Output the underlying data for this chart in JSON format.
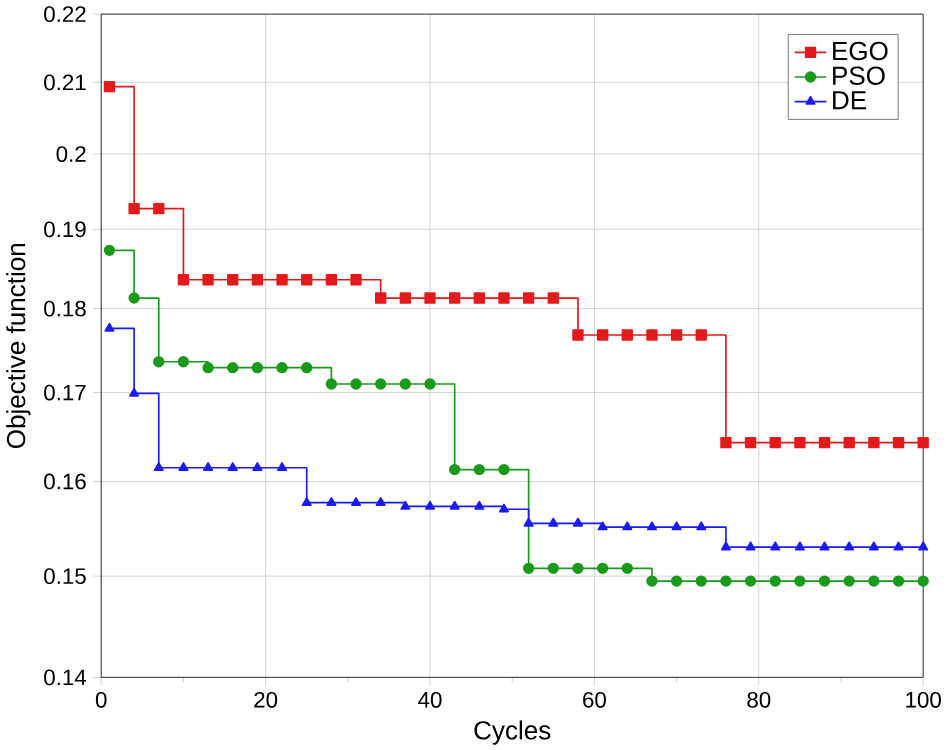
{
  "chart_data": {
    "type": "step",
    "xlabel": "Cycles",
    "ylabel": "Objective function",
    "log": "y",
    "grid": true,
    "legend": "top right",
    "xlim": [
      0,
      100
    ],
    "ylim": [
      0.14,
      0.22
    ],
    "xticks": [
      0,
      20,
      40,
      60,
      80,
      100
    ],
    "yticks": [
      0.14,
      0.15,
      0.16,
      0.17,
      0.18,
      0.19,
      0.2,
      0.21,
      0.22
    ],
    "x": [
      1,
      4,
      7,
      10,
      13,
      16,
      19,
      22,
      25,
      28,
      31,
      34,
      37,
      40,
      43,
      46,
      49,
      52,
      55,
      58,
      61,
      64,
      67,
      70,
      73,
      76,
      79,
      82,
      85,
      88,
      91,
      94,
      97,
      100
    ],
    "series": [
      {
        "name": "EGO",
        "color": "#e31a1c",
        "marker": "square",
        "values": [
          0.2094,
          0.1927,
          0.1927,
          0.1836,
          0.1836,
          0.1836,
          0.1836,
          0.1836,
          0.1836,
          0.1836,
          0.1836,
          0.1813,
          0.1813,
          0.1813,
          0.1813,
          0.1813,
          0.1813,
          0.1813,
          0.1813,
          0.1768,
          0.1768,
          0.1768,
          0.1768,
          0.1768,
          0.1768,
          0.1643,
          0.1643,
          0.1643,
          0.1643,
          0.1643,
          0.1643,
          0.1643,
          0.1643,
          0.1643
        ]
      },
      {
        "name": "PSO",
        "color": "#1a9a1a",
        "marker": "circle",
        "values": [
          0.1873,
          0.1813,
          0.1736,
          0.1736,
          0.1729,
          0.1729,
          0.1729,
          0.1729,
          0.1729,
          0.171,
          0.171,
          0.171,
          0.171,
          0.171,
          0.1613,
          0.1613,
          0.1613,
          0.1508,
          0.1508,
          0.1508,
          0.1508,
          0.1508,
          0.1495,
          0.1495,
          0.1495,
          0.1495,
          0.1495,
          0.1495,
          0.1495,
          0.1495,
          0.1495,
          0.1495,
          0.1495,
          0.1495
        ]
      },
      {
        "name": "DE",
        "color": "#1a1aff",
        "marker": "triangle",
        "values": [
          0.1776,
          0.1699,
          0.1615,
          0.1615,
          0.1615,
          0.1615,
          0.1615,
          0.1615,
          0.1577,
          0.1577,
          0.1577,
          0.1577,
          0.1573,
          0.1573,
          0.1573,
          0.1573,
          0.157,
          0.1555,
          0.1555,
          0.1555,
          0.1551,
          0.1551,
          0.1551,
          0.1551,
          0.1551,
          0.153,
          0.153,
          0.153,
          0.153,
          0.153,
          0.153,
          0.153,
          0.153,
          0.153
        ]
      }
    ]
  }
}
